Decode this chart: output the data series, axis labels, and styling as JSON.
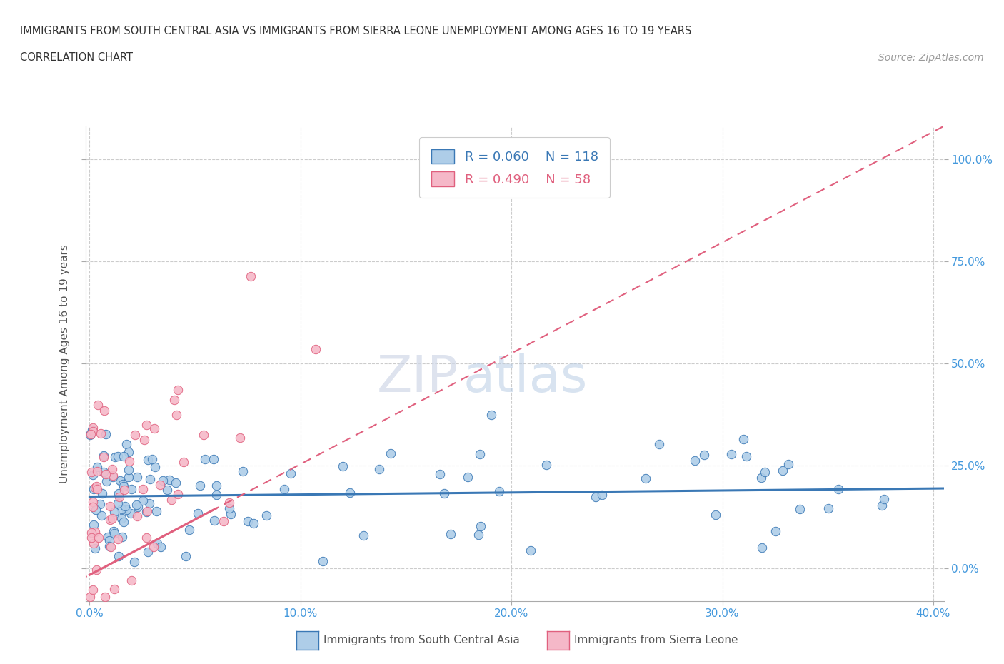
{
  "title_line1": "IMMIGRANTS FROM SOUTH CENTRAL ASIA VS IMMIGRANTS FROM SIERRA LEONE UNEMPLOYMENT AMONG AGES 16 TO 19 YEARS",
  "title_line2": "CORRELATION CHART",
  "source_text": "Source: ZipAtlas.com",
  "ylabel": "Unemployment Among Ages 16 to 19 years",
  "xlim": [
    -0.002,
    0.405
  ],
  "ylim": [
    -0.08,
    1.08
  ],
  "xtick_labels": [
    "0.0%",
    "10.0%",
    "20.0%",
    "30.0%",
    "40.0%"
  ],
  "xtick_vals": [
    0.0,
    0.1,
    0.2,
    0.3,
    0.4
  ],
  "ytick_labels": [
    "100.0%",
    "75.0%",
    "50.0%",
    "25.0%",
    "0.0%"
  ],
  "ytick_vals": [
    1.0,
    0.75,
    0.5,
    0.25,
    0.0
  ],
  "blue_color": "#aecde8",
  "pink_color": "#f5b8c8",
  "blue_line_color": "#3a78b5",
  "pink_line_color": "#e0607e",
  "watermark_zip": "ZIP",
  "watermark_atlas": "atlas",
  "legend_blue_r": "R = 0.060",
  "legend_blue_n": "N = 118",
  "legend_pink_r": "R = 0.490",
  "legend_pink_n": "N = 58",
  "blue_trendline_x": [
    0.0,
    0.405
  ],
  "blue_trendline_y": [
    0.175,
    0.195
  ],
  "pink_trendline_x": [
    -0.005,
    0.405
  ],
  "pink_trendline_y": [
    -0.03,
    1.08
  ],
  "background_color": "#ffffff",
  "grid_color": "#cccccc",
  "title_color": "#333333",
  "axis_label_color": "#555555",
  "tick_color": "#4499dd"
}
